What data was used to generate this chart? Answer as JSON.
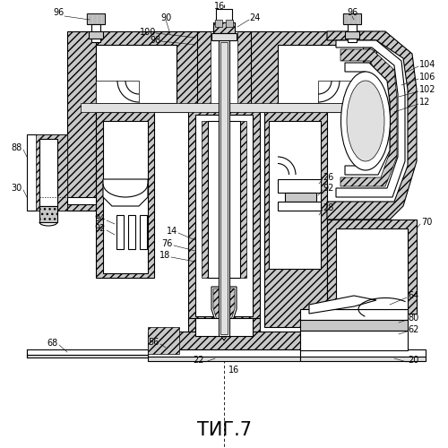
{
  "title": "ΤИГ.7",
  "title_fontsize": 15,
  "bg_color": "#ffffff",
  "line_color": "#000000",
  "fig_width": 5.0,
  "fig_height": 5.0,
  "dpi": 100,
  "hatch_dense": "////",
  "hatch_light": "//",
  "gray_fill": "#c8c8c8",
  "white_fill": "#ffffff",
  "light_gray": "#e8e8e8"
}
